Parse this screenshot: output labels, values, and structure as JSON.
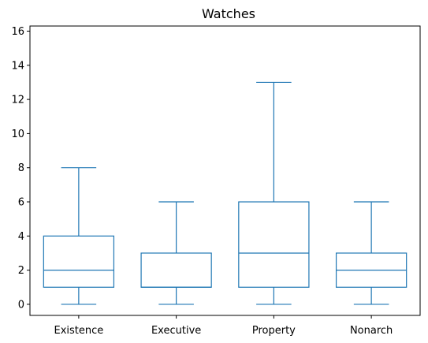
{
  "chart_data": {
    "type": "box",
    "title": "Watches",
    "xlabel": "",
    "ylabel": "",
    "categories": [
      "Existence",
      "Executive",
      "Property",
      "Nonarch"
    ],
    "boxes": [
      {
        "category": "Existence",
        "whisker_low": 0,
        "q1": 1,
        "median": 2,
        "q3": 4,
        "whisker_high": 8
      },
      {
        "category": "Executive",
        "whisker_low": 0,
        "q1": 1,
        "median": 1,
        "q3": 3,
        "whisker_high": 6
      },
      {
        "category": "Property",
        "whisker_low": 0,
        "q1": 1,
        "median": 3,
        "q3": 6,
        "whisker_high": 13
      },
      {
        "category": "Nonarch",
        "whisker_low": 0,
        "q1": 1,
        "median": 2,
        "q3": 3,
        "whisker_high": 6
      }
    ],
    "ylim": [
      -0.65,
      16.3
    ],
    "yticks": [
      0,
      2,
      4,
      6,
      8,
      10,
      12,
      14,
      16
    ],
    "grid": false,
    "legend": "none",
    "colors": {
      "box": "#1f77b4",
      "axis": "#000000"
    }
  }
}
